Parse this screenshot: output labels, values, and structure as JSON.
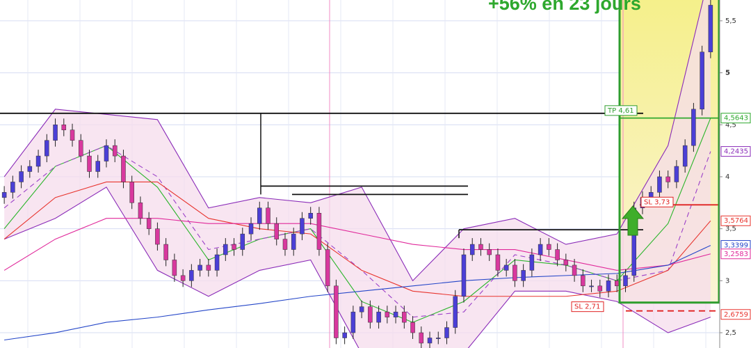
{
  "chart_data": {
    "type": "candlestick",
    "title": "+56% en 23 jours",
    "title_color": "#2ea82e",
    "ylim": [
      2.353,
      5.7
    ],
    "yticks": [
      {
        "value": 2.5,
        "label": "2,5"
      },
      3,
      {
        "value": 3.5,
        "label": "3,5"
      },
      4,
      {
        "value": 4.5,
        "label": "4,5"
      },
      5,
      {
        "value": 5.5,
        "label": "5,5"
      }
    ],
    "grid": true,
    "up_color": "#4b3fd6",
    "down_color": "#d8389e",
    "candles": [
      [
        3.8,
        3.91,
        3.74,
        3.85
      ],
      [
        3.85,
        4.01,
        3.79,
        3.95
      ],
      [
        3.95,
        4.11,
        3.89,
        4.05
      ],
      [
        4.05,
        4.16,
        3.99,
        4.1
      ],
      [
        4.1,
        4.26,
        4.04,
        4.2
      ],
      [
        4.2,
        4.41,
        4.14,
        4.35
      ],
      [
        4.35,
        4.56,
        4.29,
        4.5
      ],
      [
        4.5,
        4.56,
        4.39,
        4.45
      ],
      [
        4.45,
        4.51,
        4.29,
        4.35
      ],
      [
        4.35,
        4.41,
        4.14,
        4.2
      ],
      [
        4.2,
        4.26,
        3.99,
        4.05
      ],
      [
        4.05,
        4.21,
        3.99,
        4.15
      ],
      [
        4.15,
        4.36,
        4.09,
        4.3
      ],
      [
        4.3,
        4.36,
        4.14,
        4.2
      ],
      [
        4.2,
        4.26,
        3.89,
        3.95
      ],
      [
        3.95,
        4.01,
        3.69,
        3.75
      ],
      [
        3.75,
        3.81,
        3.54,
        3.6
      ],
      [
        3.6,
        3.66,
        3.44,
        3.5
      ],
      [
        3.5,
        3.56,
        3.29,
        3.35
      ],
      [
        3.35,
        3.41,
        3.14,
        3.2
      ],
      [
        3.2,
        3.26,
        2.99,
        3.05
      ],
      [
        3.05,
        3.11,
        2.94,
        3.0
      ],
      [
        3.0,
        3.16,
        2.94,
        3.1
      ],
      [
        3.1,
        3.21,
        3.04,
        3.15
      ],
      [
        3.15,
        3.21,
        3.04,
        3.1
      ],
      [
        3.1,
        3.31,
        3.04,
        3.25
      ],
      [
        3.25,
        3.41,
        3.19,
        3.35
      ],
      [
        3.35,
        3.41,
        3.24,
        3.3
      ],
      [
        3.3,
        3.51,
        3.24,
        3.45
      ],
      [
        3.45,
        3.61,
        3.39,
        3.55
      ],
      [
        3.55,
        3.76,
        3.49,
        3.7
      ],
      [
        3.7,
        3.76,
        3.49,
        3.55
      ],
      [
        3.55,
        3.61,
        3.34,
        3.4
      ],
      [
        3.4,
        3.46,
        3.24,
        3.3
      ],
      [
        3.3,
        3.51,
        3.24,
        3.45
      ],
      [
        3.45,
        3.66,
        3.39,
        3.6
      ],
      [
        3.6,
        3.71,
        3.54,
        3.65
      ],
      [
        3.65,
        3.71,
        3.24,
        3.3
      ],
      [
        3.3,
        3.36,
        2.89,
        2.95
      ],
      [
        2.95,
        3.01,
        2.39,
        2.45
      ],
      [
        2.45,
        2.56,
        2.39,
        2.5
      ],
      [
        2.5,
        2.76,
        2.44,
        2.7
      ],
      [
        2.7,
        2.81,
        2.64,
        2.75
      ],
      [
        2.75,
        2.81,
        2.54,
        2.6
      ],
      [
        2.6,
        2.76,
        2.54,
        2.7
      ],
      [
        2.7,
        2.76,
        2.59,
        2.65
      ],
      [
        2.65,
        2.76,
        2.59,
        2.7
      ],
      [
        2.7,
        2.76,
        2.54,
        2.6
      ],
      [
        2.6,
        2.66,
        2.44,
        2.5
      ],
      [
        2.5,
        2.56,
        2.34,
        2.4
      ],
      [
        2.4,
        2.51,
        2.34,
        2.45
      ],
      [
        2.45,
        2.51,
        2.39,
        2.45
      ],
      [
        2.45,
        2.61,
        2.39,
        2.55
      ],
      [
        2.55,
        2.91,
        2.49,
        2.85
      ],
      [
        2.85,
        3.31,
        2.79,
        3.25
      ],
      [
        3.25,
        3.41,
        3.19,
        3.35
      ],
      [
        3.35,
        3.41,
        3.24,
        3.3
      ],
      [
        3.3,
        3.36,
        3.19,
        3.25
      ],
      [
        3.25,
        3.31,
        3.04,
        3.1
      ],
      [
        3.1,
        3.21,
        3.04,
        3.15
      ],
      [
        3.15,
        3.21,
        2.94,
        3.0
      ],
      [
        3.0,
        3.16,
        2.94,
        3.1
      ],
      [
        3.1,
        3.31,
        3.04,
        3.25
      ],
      [
        3.25,
        3.41,
        3.19,
        3.35
      ],
      [
        3.35,
        3.41,
        3.24,
        3.3
      ],
      [
        3.3,
        3.36,
        3.14,
        3.2
      ],
      [
        3.2,
        3.26,
        3.09,
        3.15
      ],
      [
        3.15,
        3.21,
        2.99,
        3.05
      ],
      [
        3.05,
        3.11,
        2.89,
        2.95
      ],
      [
        2.95,
        3.01,
        2.89,
        2.95
      ],
      [
        2.95,
        3.01,
        2.84,
        2.9
      ],
      [
        2.9,
        3.06,
        2.84,
        3.0
      ],
      [
        3.0,
        3.06,
        2.89,
        2.95
      ],
      [
        2.95,
        3.11,
        2.89,
        3.05
      ],
      [
        3.05,
        3.76,
        2.99,
        3.7
      ],
      [
        3.7,
        3.86,
        3.64,
        3.8
      ],
      [
        3.8,
        3.91,
        3.74,
        3.85
      ],
      [
        3.85,
        4.06,
        3.79,
        4.0
      ],
      [
        4.0,
        4.06,
        3.89,
        3.95
      ],
      [
        3.95,
        4.16,
        3.89,
        4.1
      ],
      [
        4.1,
        4.36,
        4.04,
        4.3
      ],
      [
        4.3,
        4.71,
        4.24,
        4.65
      ],
      [
        4.65,
        5.26,
        4.59,
        5.2
      ],
      [
        5.2,
        5.71,
        5.14,
        5.65
      ]
    ],
    "line_x": [
      0,
      6,
      12,
      18,
      24,
      30,
      36,
      42,
      48,
      54,
      60,
      66,
      72,
      78,
      83
    ],
    "band_upper": [
      4.0,
      4.65,
      4.6,
      4.55,
      3.7,
      3.8,
      3.75,
      3.9,
      3.0,
      3.5,
      3.6,
      3.35,
      3.45,
      4.3,
      6.0
    ],
    "band_lower": [
      3.4,
      3.6,
      3.9,
      3.1,
      2.85,
      3.1,
      3.2,
      2.3,
      2.3,
      2.3,
      2.9,
      2.9,
      2.8,
      2.5,
      2.65
    ],
    "band_color": "#8a2bb8",
    "band_fill": "#f6dcec",
    "series": [
      {
        "color": "#2bb52b",
        "dashed": false,
        "values": [
          3.5,
          4.1,
          4.3,
          3.9,
          3.2,
          3.4,
          3.5,
          2.8,
          2.6,
          2.8,
          3.2,
          3.15,
          3.0,
          3.55,
          4.5643
        ]
      },
      {
        "color": "#9b3fc8",
        "dashed": true,
        "values": [
          3.7,
          4.1,
          4.3,
          4.0,
          3.3,
          3.4,
          3.5,
          3.1,
          2.65,
          2.7,
          3.25,
          3.15,
          3.0,
          3.1,
          4.2435
        ]
      },
      {
        "color": "#e8342e",
        "dashed": false,
        "values": [
          3.4,
          3.8,
          3.95,
          3.95,
          3.6,
          3.5,
          3.45,
          3.1,
          2.9,
          2.85,
          2.85,
          2.85,
          2.9,
          3.1,
          3.5764
        ]
      },
      {
        "color": "#e0289a",
        "dashed": false,
        "values": [
          3.1,
          3.4,
          3.6,
          3.6,
          3.55,
          3.55,
          3.55,
          3.45,
          3.35,
          3.3,
          3.3,
          3.2,
          3.1,
          3.15,
          3.2583
        ]
      },
      {
        "color": "#2446c8",
        "dashed": false,
        "values": [
          2.43,
          2.5,
          2.6,
          2.65,
          2.72,
          2.78,
          2.85,
          2.9,
          2.95,
          3.0,
          3.03,
          3.05,
          3.07,
          3.15,
          3.3399
        ]
      }
    ],
    "price_tags": [
      {
        "value": 4.5643,
        "label": "4,5643",
        "color": "#2ea82e"
      },
      {
        "value": 4.2435,
        "label": "4,2435",
        "color": "#8a2bb8"
      },
      {
        "value": 3.5764,
        "label": "3,5764",
        "color": "#e8342e"
      },
      {
        "value": 3.3399,
        "label": "3,3399",
        "color": "#2446c8"
      },
      {
        "value": 3.2583,
        "label": "3,2583",
        "color": "#e0289a"
      },
      {
        "value": 2.6759,
        "label": "2,6759",
        "color": "#e8342e"
      }
    ],
    "levels": [
      {
        "value": 4.61,
        "label": "TP 4,61",
        "color": "#111111"
      },
      {
        "value": 3.91,
        "color": "#111111"
      },
      {
        "value": 3.83,
        "color": "#111111"
      },
      {
        "value": 3.49,
        "color": "#111111"
      },
      {
        "value": 3.73,
        "label": "SL 3,73",
        "color": "#e02020"
      },
      {
        "value": 2.71,
        "label": "SL 2,71",
        "color": "#e02020"
      },
      {
        "value": 4.5643,
        "color": "#2ea82e"
      }
    ],
    "highlight": {
      "bottom": 2.79,
      "color": "#2e9d2e"
    }
  }
}
